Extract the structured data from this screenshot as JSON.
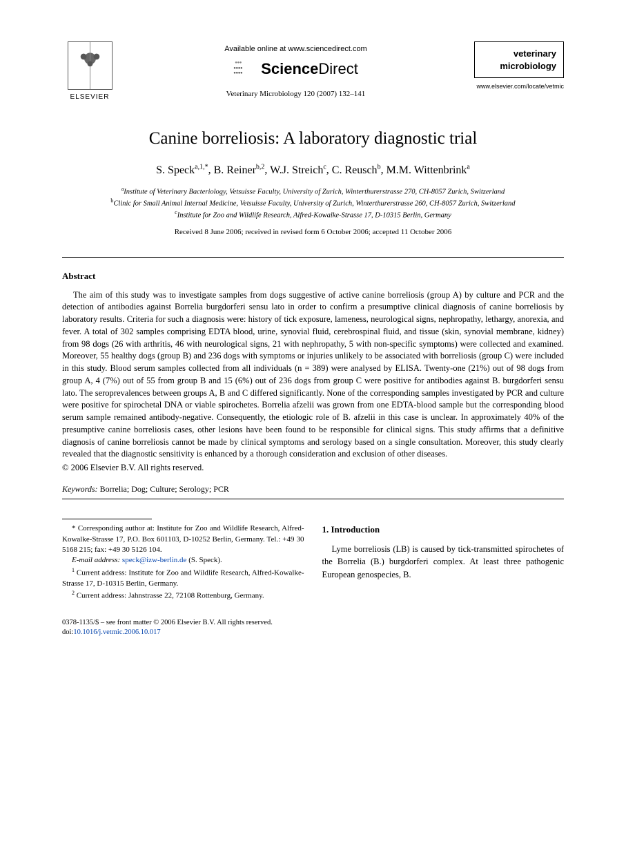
{
  "header": {
    "elsevier_label": "ELSEVIER",
    "available_online": "Available online at www.sciencedirect.com",
    "sd_brand_bold": "Science",
    "sd_brand_rest": "Direct",
    "journal_ref": "Veterinary Microbiology 120 (2007) 132–141",
    "journal_box_line1": "veterinary",
    "journal_box_line2": "microbiology",
    "journal_url": "www.elsevier.com/locate/vetmic"
  },
  "title": "Canine borreliosis: A laboratory diagnostic trial",
  "authors": [
    {
      "name": "S. Speck",
      "sup": "a,1,*"
    },
    {
      "name": "B. Reiner",
      "sup": "b,2"
    },
    {
      "name": "W.J. Streich",
      "sup": "c"
    },
    {
      "name": "C. Reusch",
      "sup": "b"
    },
    {
      "name": "M.M. Wittenbrink",
      "sup": "a"
    }
  ],
  "affiliations": [
    {
      "sup": "a",
      "text": "Institute of Veterinary Bacteriology, Vetsuisse Faculty, University of Zurich, Winterthurerstrasse 270, CH-8057 Zurich, Switzerland"
    },
    {
      "sup": "b",
      "text": "Clinic for Small Animal Internal Medicine, Vetsuisse Faculty, University of Zurich, Winterthurerstrasse 260, CH-8057 Zurich, Switzerland"
    },
    {
      "sup": "c",
      "text": "Institute for Zoo and Wildlife Research, Alfred-Kowalke-Strasse 17, D-10315 Berlin, Germany"
    }
  ],
  "received": "Received 8 June 2006; received in revised form 6 October 2006; accepted 11 October 2006",
  "abstract_heading": "Abstract",
  "abstract_body": "The aim of this study was to investigate samples from dogs suggestive of active canine borreliosis (group A) by culture and PCR and the detection of antibodies against Borrelia burgdorferi sensu lato in order to confirm a presumptive clinical diagnosis of canine borreliosis by laboratory results. Criteria for such a diagnosis were: history of tick exposure, lameness, neurological signs, nephropathy, lethargy, anorexia, and fever. A total of 302 samples comprising EDTA blood, urine, synovial fluid, cerebrospinal fluid, and tissue (skin, synovial membrane, kidney) from 98 dogs (26 with arthritis, 46 with neurological signs, 21 with nephropathy, 5 with non-specific symptoms) were collected and examined. Moreover, 55 healthy dogs (group B) and 236 dogs with symptoms or injuries unlikely to be associated with borreliosis (group C) were included in this study. Blood serum samples collected from all individuals (n = 389) were analysed by ELISA. Twenty-one (21%) out of 98 dogs from group A, 4 (7%) out of 55 from group B and 15 (6%) out of 236 dogs from group C were positive for antibodies against B. burgdorferi sensu lato. The seroprevalences between groups A, B and C differed significantly. None of the corresponding samples investigated by PCR and culture were positive for spirochetal DNA or viable spirochetes. Borrelia afzelii was grown from one EDTA-blood sample but the corresponding blood serum sample remained antibody-negative. Consequently, the etiologic role of B. afzelii in this case is unclear. In approximately 40% of the presumptive canine borreliosis cases, other lesions have been found to be responsible for clinical signs. This study affirms that a definitive diagnosis of canine borreliosis cannot be made by clinical symptoms and serology based on a single consultation. Moreover, this study clearly revealed that the diagnostic sensitivity is enhanced by a thorough consideration and exclusion of other diseases.",
  "copyright": "© 2006 Elsevier B.V. All rights reserved.",
  "keywords_label": "Keywords:",
  "keywords_text": " Borrelia; Dog; Culture; Serology; PCR",
  "footnotes": {
    "corresponding": "* Corresponding author at: Institute for Zoo and Wildlife Research, Alfred-Kowalke-Strasse 17, P.O. Box 601103, D-10252 Berlin, Germany. Tel.: +49 30 5168 215; fax: +49 30 5126 104.",
    "email_label": "E-mail address:",
    "email": "speck@izw-berlin.de",
    "email_person": " (S. Speck).",
    "note1": "Current address: Institute for Zoo and Wildlife Research, Alfred-Kowalke-Strasse 17, D-10315 Berlin, Germany.",
    "note1_sup": "1",
    "note2": "Current address: Jahnstrasse 22, 72108 Rottenburg, Germany.",
    "note2_sup": "2"
  },
  "intro": {
    "heading": "1. Introduction",
    "body": "Lyme borreliosis (LB) is caused by tick-transmitted spirochetes of the Borrelia (B.) burgdorferi complex. At least three pathogenic European genospecies, B."
  },
  "bottom": {
    "front_matter": "0378-1135/$ – see front matter © 2006 Elsevier B.V. All rights reserved.",
    "doi_label": "doi:",
    "doi": "10.1016/j.vetmic.2006.10.017"
  },
  "colors": {
    "text": "#000000",
    "link": "#0645ad",
    "background": "#ffffff"
  },
  "typography": {
    "body_font": "Georgia, Times New Roman, serif",
    "title_size_pt": 19,
    "author_size_pt": 12,
    "abstract_size_pt": 9.5,
    "footnote_size_pt": 8
  }
}
